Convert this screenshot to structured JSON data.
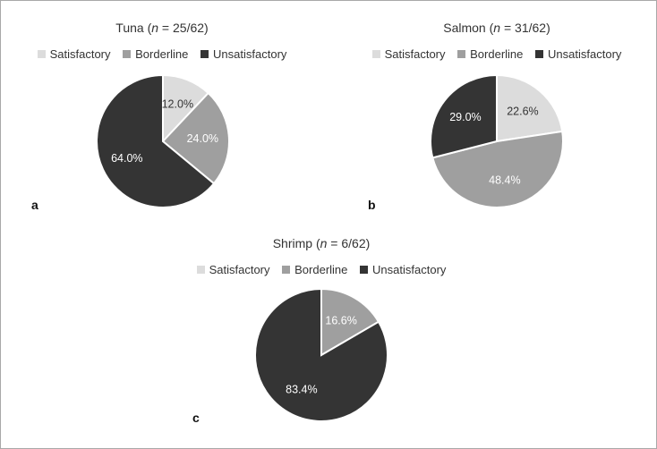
{
  "colors": {
    "Satisfactory": "#dcdcdc",
    "Borderline": "#9f9f9f",
    "Unsatisfactory": "#343434",
    "slice_border": "#ffffff"
  },
  "chart_data": [
    {
      "type": "pie",
      "panel": "a",
      "title_prefix": "Tuna (",
      "title_n": "n",
      "title_suffix": " = 25/62)",
      "legend": [
        "Satisfactory",
        "Borderline",
        "Unsatisfactory"
      ],
      "slices": [
        {
          "label": "Satisfactory",
          "value": 12.0,
          "text": "12.0%"
        },
        {
          "label": "Borderline",
          "value": 24.0,
          "text": "24.0%"
        },
        {
          "label": "Unsatisfactory",
          "value": 64.0,
          "text": "64.0%"
        }
      ]
    },
    {
      "type": "pie",
      "panel": "b",
      "title_prefix": "Salmon (",
      "title_n": "n",
      "title_suffix": " = 31/62)",
      "legend": [
        "Satisfactory",
        "Borderline",
        "Unsatisfactory"
      ],
      "slices": [
        {
          "label": "Satisfactory",
          "value": 22.6,
          "text": "22.6%"
        },
        {
          "label": "Borderline",
          "value": 48.4,
          "text": "48.4%"
        },
        {
          "label": "Unsatisfactory",
          "value": 29.0,
          "text": "29.0%"
        }
      ]
    },
    {
      "type": "pie",
      "panel": "c",
      "title_prefix": "Shrimp (",
      "title_n": "n",
      "title_suffix": " = 6/62)",
      "legend": [
        "Satisfactory",
        "Borderline",
        "Unsatisfactory"
      ],
      "slices": [
        {
          "label": "Satisfactory",
          "value": 0,
          "text": ""
        },
        {
          "label": "Borderline",
          "value": 16.6,
          "text": "16.6%"
        },
        {
          "label": "Unsatisfactory",
          "value": 83.4,
          "text": "83.4%"
        }
      ]
    }
  ]
}
